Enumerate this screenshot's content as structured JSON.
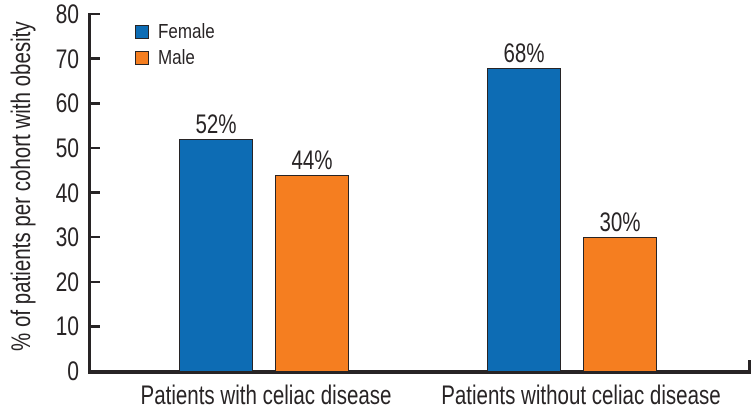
{
  "chart_data": {
    "type": "bar",
    "title": "",
    "xlabel": "",
    "ylabel": "% of patients per cohort with obesity",
    "categories": [
      "Patients with celiac disease",
      "Patients without celiac disease"
    ],
    "series": [
      {
        "name": "Female",
        "color": "#0d6cb4",
        "values": [
          52,
          68
        ],
        "labels": [
          "52%",
          "68%"
        ]
      },
      {
        "name": "Male",
        "color": "#f57e20",
        "values": [
          44,
          30
        ],
        "labels": [
          "44%",
          "30%"
        ]
      }
    ],
    "ylim": [
      0,
      80
    ],
    "yticks": [
      0,
      10,
      20,
      30,
      40,
      50,
      60,
      70,
      80
    ],
    "grid": false,
    "legend_position": "top-left",
    "axis_color": "#282425",
    "text_color": "#282425",
    "bar_outline_color": "#282425",
    "background_color": "#ffffff"
  }
}
